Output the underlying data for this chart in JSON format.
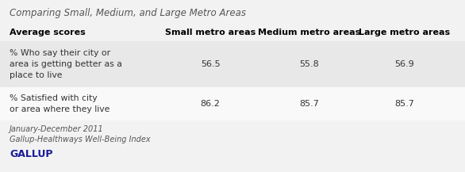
{
  "title": "Comparing Small, Medium, and Large Metro Areas",
  "col_header": [
    "Average scores",
    "Small metro areas",
    "Medium metro areas",
    "Large metro areas"
  ],
  "rows": [
    {
      "label": "% Who say their city or\narea is getting better as a\nplace to live",
      "values": [
        "56.5",
        "55.8",
        "56.9"
      ],
      "shaded": true
    },
    {
      "label": "% Satisfied with city\nor area where they live",
      "values": [
        "86.2",
        "85.7",
        "85.7"
      ],
      "shaded": false
    }
  ],
  "footnote1": "January-December 2011",
  "footnote2": "Gallup-Healthways Well-Being Index",
  "brand": "GALLUP",
  "bg_color": "#f2f2f2",
  "shaded_row_color": "#e8e8e8",
  "white_row_color": "#f9f9f9",
  "header_color": "#f2f2f2",
  "title_color": "#555555",
  "header_text_color": "#000000",
  "body_text_color": "#333333",
  "footnote_color": "#555555",
  "brand_color": "#1a1a99"
}
